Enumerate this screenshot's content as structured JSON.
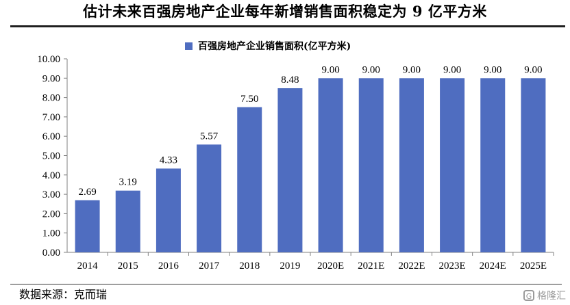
{
  "title": "估计未来百强房地产企业每年新增销售面积稳定为 9 亿平方米",
  "source": "数据来源：克而瑞",
  "watermark": {
    "text": "格隆汇",
    "icon": "gelonghui-logo-icon"
  },
  "colors": {
    "bar": "#4f6dc0",
    "axis": "#7f7f7f"
  },
  "chart_data": {
    "type": "bar",
    "categories": [
      "2014",
      "2015",
      "2016",
      "2017",
      "2018",
      "2019",
      "2020E",
      "2021E",
      "2022E",
      "2023E",
      "2024E",
      "2025E"
    ],
    "series": [
      {
        "name": "百强房地产企业销售面积(亿平方米)",
        "values": [
          2.69,
          3.19,
          4.33,
          5.57,
          7.5,
          8.48,
          9.0,
          9.0,
          9.0,
          9.0,
          9.0,
          9.0
        ],
        "labels": [
          "2.69",
          "3.19",
          "4.33",
          "5.57",
          "7.50",
          "8.48",
          "9.00",
          "9.00",
          "9.00",
          "9.00",
          "9.00",
          "9.00"
        ]
      }
    ],
    "ylim": [
      0,
      10
    ],
    "yticks": [
      "0.00",
      "1.00",
      "2.00",
      "3.00",
      "4.00",
      "5.00",
      "6.00",
      "7.00",
      "8.00",
      "9.00",
      "10.00"
    ],
    "grid": false,
    "legend_position": "top-center"
  }
}
